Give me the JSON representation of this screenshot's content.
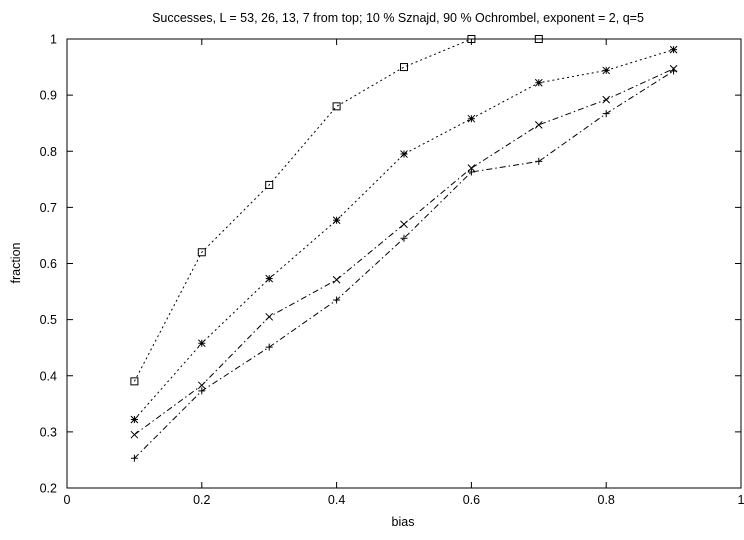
{
  "chart_data": {
    "type": "line",
    "title": "Successes, L = 53, 26, 13, 7 from top; 10 % Sznajd, 90 % Ochrombel, exponent = 2, q=5",
    "xlabel": "bias",
    "ylabel": "fraction",
    "xlim": [
      0,
      1
    ],
    "ylim": [
      0.2,
      1
    ],
    "x_ticks": [
      0,
      0.2,
      0.4,
      0.6,
      0.8,
      1
    ],
    "x_tick_labels": [
      "0",
      "0.2",
      "0.4",
      "0.6",
      "0.8",
      "1"
    ],
    "y_ticks": [
      0.2,
      0.3,
      0.4,
      0.5,
      0.6,
      0.7,
      0.8,
      0.9,
      1
    ],
    "y_tick_labels": [
      "0.2",
      "0.3",
      "0.4",
      "0.5",
      "0.6",
      "0.7",
      "0.8",
      "0.9",
      "1"
    ],
    "grid": false,
    "legend": "none",
    "series": [
      {
        "marker": "square",
        "line_style": "dotted",
        "x": [
          0.1,
          0.2,
          0.3,
          0.4,
          0.5,
          0.6,
          0.7
        ],
        "y": [
          0.39,
          0.62,
          0.74,
          0.88,
          0.95,
          1.0,
          1.0
        ]
      },
      {
        "marker": "asterisk",
        "line_style": "dotted",
        "x": [
          0.1,
          0.2,
          0.3,
          0.4,
          0.5,
          0.6,
          0.7,
          0.8,
          0.9
        ],
        "y": [
          0.322,
          0.458,
          0.573,
          0.677,
          0.795,
          0.858,
          0.922,
          0.944,
          0.981
        ]
      },
      {
        "marker": "cross",
        "line_style": "dashdot",
        "x": [
          0.1,
          0.2,
          0.3,
          0.4,
          0.5,
          0.6,
          0.7,
          0.8,
          0.9
        ],
        "y": [
          0.295,
          0.383,
          0.505,
          0.571,
          0.67,
          0.77,
          0.847,
          0.892,
          0.947
        ]
      },
      {
        "marker": "plus",
        "line_style": "dashdot",
        "x": [
          0.1,
          0.2,
          0.3,
          0.4,
          0.5,
          0.6,
          0.7,
          0.8,
          0.9
        ],
        "y": [
          0.253,
          0.373,
          0.451,
          0.535,
          0.645,
          0.763,
          0.782,
          0.867,
          0.943
        ]
      }
    ],
    "colors": {
      "axes": "#000000",
      "lines": "#000000",
      "background": "#ffffff"
    }
  }
}
